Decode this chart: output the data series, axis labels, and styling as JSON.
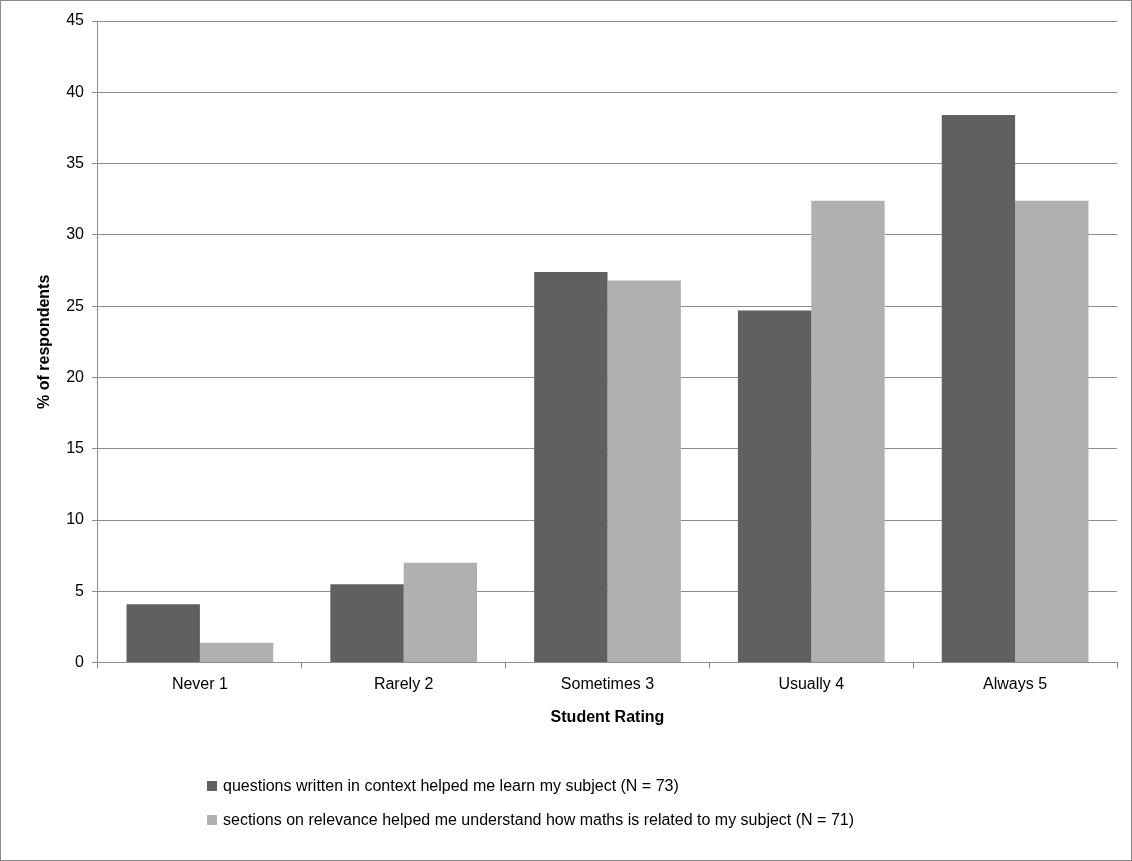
{
  "chart_data": {
    "type": "bar",
    "xlabel": "Student Rating",
    "ylabel": "% of respondents",
    "categories": [
      "Never 1",
      "Rarely 2",
      "Sometimes 3",
      "Usually 4",
      "Always 5"
    ],
    "series": [
      {
        "name": "questions written in context helped me learn my subject (N = 73)",
        "color": "#606060",
        "values": [
          4.1,
          5.5,
          27.4,
          24.7,
          38.4
        ]
      },
      {
        "name": "sections on relevance helped me understand how maths is related to my subject (N = 71)",
        "color": "#b0b0b0",
        "values": [
          1.4,
          7.0,
          26.8,
          32.4,
          32.4
        ]
      }
    ],
    "ylim": [
      0,
      45
    ],
    "yticks": [
      0,
      5,
      10,
      15,
      20,
      25,
      30,
      35,
      40,
      45
    ],
    "grid": "y",
    "legend": "bottom"
  }
}
